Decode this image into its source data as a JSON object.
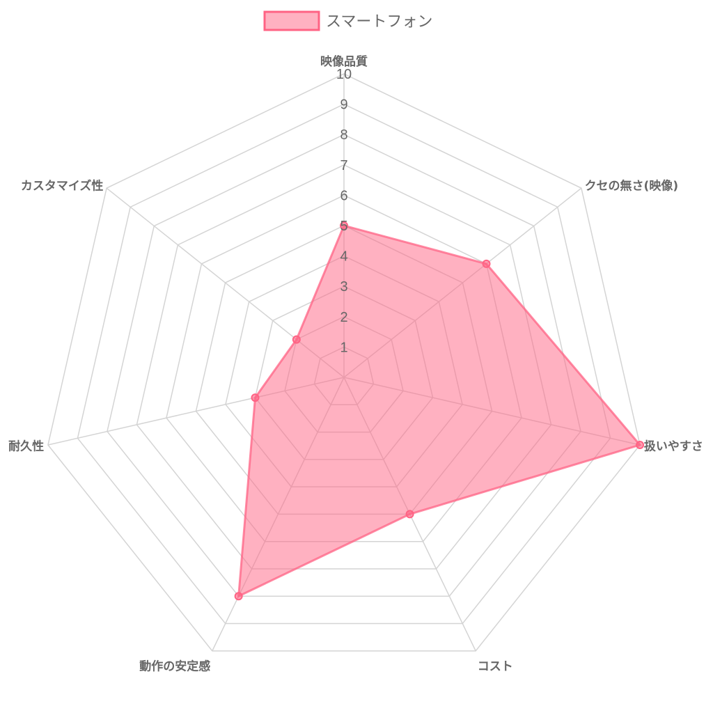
{
  "chart_data": {
    "type": "radar",
    "categories": [
      "映像品質",
      "クセの無さ(映像)",
      "扱いやすさ",
      "コスト",
      "動作の安定感",
      "耐久性",
      "カスタマイズ性"
    ],
    "series": [
      {
        "name": "スマートフォン",
        "values": [
          5,
          6,
          10,
          5,
          8,
          3,
          2
        ],
        "fill_color": "#ff6384",
        "fill_opacity": 0.5,
        "border_color": "#ff6384"
      }
    ],
    "rlim": [
      0,
      10
    ],
    "ticks": [
      "1",
      "2",
      "3",
      "4",
      "5",
      "6",
      "7",
      "8",
      "9",
      "10"
    ],
    "grid": true,
    "legend_position": "top"
  },
  "colors": {
    "grid": "#d4d4d4",
    "text": "#666666"
  }
}
